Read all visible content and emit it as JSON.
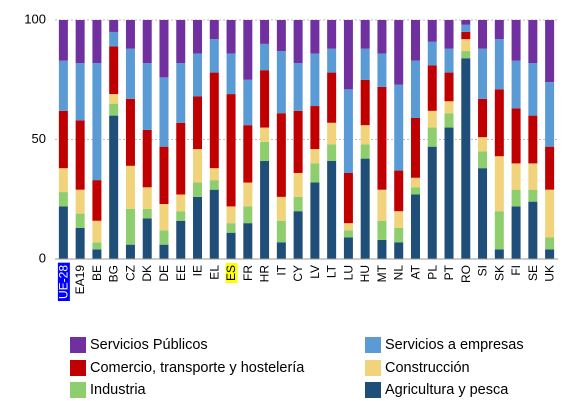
{
  "chart_data": {
    "type": "stacked_bar",
    "categories": [
      "UE-28",
      "EA19",
      "BE",
      "BG",
      "CZ",
      "DK",
      "DE",
      "EE",
      "IE",
      "EL",
      "ES",
      "FR",
      "HR",
      "IT",
      "CY",
      "LV",
      "LT",
      "LU",
      "HU",
      "MT",
      "NL",
      "AT",
      "PL",
      "PT",
      "RO",
      "SI",
      "SK",
      "FI",
      "SE",
      "UK"
    ],
    "category_label_backgrounds": [
      "#0000ff",
      null,
      null,
      null,
      null,
      null,
      null,
      null,
      null,
      null,
      "#ffff00",
      null,
      null,
      null,
      null,
      null,
      null,
      null,
      null,
      null,
      null,
      null,
      null,
      null,
      null,
      null,
      null,
      null,
      null,
      null
    ],
    "category_label_colors": [
      "#ffffff",
      null,
      null,
      null,
      null,
      null,
      null,
      null,
      null,
      null,
      null,
      null,
      null,
      null,
      null,
      null,
      null,
      null,
      null,
      null,
      null,
      null,
      null,
      null,
      null,
      null,
      null,
      null,
      null,
      null
    ],
    "series": [
      {
        "name": "Agricultura y pesca",
        "color": "#1f4e79",
        "values": [
          22,
          13,
          4,
          60,
          6,
          17,
          6,
          16,
          26,
          29,
          11,
          15,
          41,
          7,
          20,
          32,
          41,
          9,
          42,
          8,
          7,
          27,
          47,
          55,
          84,
          38,
          4,
          22,
          24,
          4
        ]
      },
      {
        "name": "Industria",
        "color": "#8fce6f",
        "values": [
          6,
          6,
          3,
          5,
          15,
          4,
          6,
          4,
          6,
          4,
          4,
          7,
          8,
          9,
          6,
          8,
          7,
          3,
          6,
          8,
          6,
          3,
          8,
          6,
          3,
          7,
          16,
          7,
          5,
          5
        ]
      },
      {
        "name": "Construcción",
        "color": "#f0d37a",
        "values": [
          10,
          10,
          9,
          4,
          18,
          9,
          11,
          7,
          14,
          5,
          7,
          10,
          6,
          10,
          10,
          6,
          9,
          3,
          8,
          13,
          7,
          4,
          7,
          5,
          5,
          6,
          23,
          11,
          11,
          20
        ]
      },
      {
        "name": "Comercio, transporte y hostelería",
        "color": "#c00000",
        "values": [
          24,
          29,
          17,
          20,
          28,
          24,
          24,
          30,
          22,
          40,
          47,
          24,
          24,
          35,
          26,
          18,
          21,
          21,
          19,
          43,
          17,
          25,
          19,
          12,
          3,
          16,
          28,
          23,
          20,
          18
        ]
      },
      {
        "name": "Servicios a empresas",
        "color": "#5b9bd5",
        "values": [
          21,
          24,
          49,
          6,
          21,
          28,
          29,
          25,
          18,
          14,
          17,
          19,
          11,
          26,
          20,
          22,
          10,
          35,
          13,
          14,
          36,
          24,
          10,
          10,
          3,
          21,
          21,
          20,
          22,
          27
        ]
      },
      {
        "name": "Servicios Públicos",
        "color": "#7030a0",
        "values": [
          17,
          18,
          18,
          5,
          12,
          18,
          24,
          18,
          14,
          8,
          14,
          25,
          10,
          13,
          18,
          14,
          12,
          29,
          12,
          14,
          27,
          17,
          9,
          12,
          2,
          12,
          8,
          17,
          18,
          26
        ]
      }
    ],
    "legend_order": [
      5,
      4,
      3,
      2,
      1,
      0
    ],
    "ylim": [
      0,
      100
    ],
    "yticks": [
      0,
      50,
      100
    ],
    "grid": true
  }
}
